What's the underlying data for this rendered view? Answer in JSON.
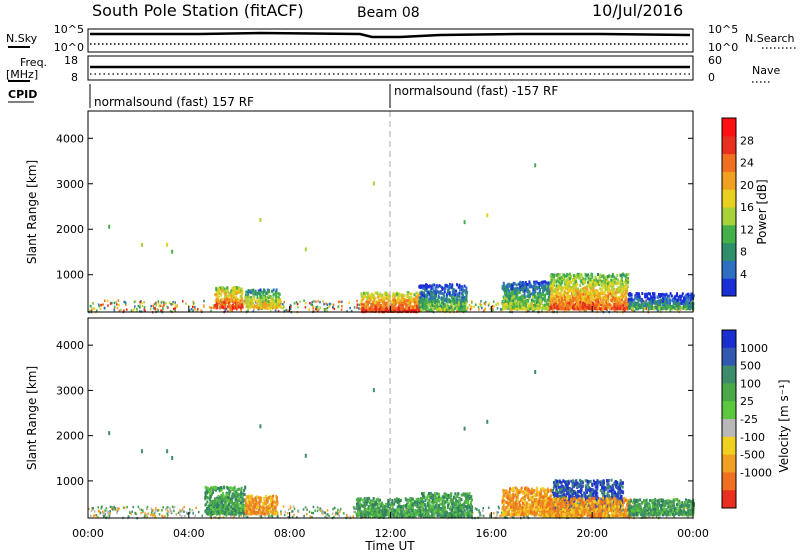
{
  "header": {
    "title": "South Pole Station (fitACF)",
    "beam": "Beam 08",
    "date": "10/Jul/2016"
  },
  "top_panels": {
    "nsky_label": "N.Sky",
    "nsky_ticks": [
      "10^5",
      "10^0"
    ],
    "nsearch_label": "N.Search",
    "nsearch_ticks": [
      "10^5",
      "10^0"
    ],
    "freq_label": "Freq.",
    "freq_unit": "[MHz]",
    "freq_ticks": [
      "18",
      "8"
    ],
    "nave_label": "Nave",
    "nave_ticks": [
      "60",
      "0"
    ],
    "cpid_label": "CPID",
    "cpid_segments": [
      {
        "label": "normalsound (fast) 157 RF",
        "start_hour": 0,
        "end_hour": 12
      },
      {
        "label": "normalsound (fast) -157 RF",
        "start_hour": 12,
        "end_hour": 24
      }
    ]
  },
  "chart_data": [
    {
      "type": "heatmap",
      "name": "power",
      "ylabel": "Slant Range [km]",
      "ylim": [
        180,
        4600
      ],
      "yticks": [
        "1000",
        "2000",
        "3000",
        "4000"
      ],
      "ytick_values": [
        1000,
        2000,
        3000,
        4000
      ],
      "xlim": [
        0,
        24
      ],
      "colorbar": {
        "label": "Power [dB]",
        "ticks": [
          "4",
          "8",
          "12",
          "16",
          "20",
          "24",
          "28"
        ],
        "tick_values": [
          4,
          8,
          12,
          16,
          20,
          24,
          28
        ],
        "range": [
          0,
          32
        ],
        "colors": [
          "#1b2fd9",
          "#2e6fc4",
          "#2f8f6a",
          "#44b04a",
          "#a8d23a",
          "#e8d020",
          "#f0a020",
          "#f07020",
          "#e83020",
          "#ff1010"
        ]
      },
      "bursts": [
        {
          "t0": 5.0,
          "t1": 6.1,
          "r0": 300,
          "r1": 760,
          "level": 27
        },
        {
          "t0": 6.2,
          "t1": 7.6,
          "r0": 300,
          "r1": 700,
          "level": 20
        },
        {
          "t0": 10.8,
          "t1": 13.1,
          "r0": 220,
          "r1": 640,
          "level": 28
        },
        {
          "t0": 13.1,
          "t1": 15.0,
          "r0": 250,
          "r1": 820,
          "level": 14
        },
        {
          "t0": 16.4,
          "t1": 18.3,
          "r0": 280,
          "r1": 880,
          "level": 16
        },
        {
          "t0": 18.3,
          "t1": 21.4,
          "r0": 280,
          "r1": 1050,
          "level": 25
        },
        {
          "t0": 21.4,
          "t1": 24.0,
          "r0": 280,
          "r1": 620,
          "level": 12
        }
      ]
    },
    {
      "type": "heatmap",
      "name": "velocity",
      "ylabel": "Slant Range [km]",
      "ylim": [
        180,
        4600
      ],
      "yticks": [
        "1000",
        "2000",
        "3000",
        "4000"
      ],
      "ytick_values": [
        1000,
        2000,
        3000,
        4000
      ],
      "xlim": [
        0,
        24
      ],
      "xlabel": "Time UT",
      "xticks": [
        "00:00",
        "04:00",
        "08:00",
        "12:00",
        "16:00",
        "20:00",
        "00:00"
      ],
      "xtick_values": [
        0,
        4,
        8,
        12,
        16,
        20,
        24
      ],
      "colorbar": {
        "label": "Velocity [m s⁻¹]",
        "ticks": [
          "1000",
          "500",
          "100",
          "25",
          "-25",
          "-100",
          "-500",
          "-1000"
        ],
        "colors": [
          "#1a2fd0",
          "#3358b0",
          "#3f8c6a",
          "#4aa848",
          "#5cc840",
          "#b8b8b8",
          "#f0d020",
          "#f0a020",
          "#f07020",
          "#e83020"
        ]
      },
      "bursts": [
        {
          "t0": 4.6,
          "t1": 6.2,
          "r0": 300,
          "r1": 900,
          "kind": "green"
        },
        {
          "t0": 6.2,
          "t1": 7.5,
          "r0": 300,
          "r1": 700,
          "kind": "orange"
        },
        {
          "t0": 10.6,
          "t1": 13.2,
          "r0": 250,
          "r1": 650,
          "kind": "green"
        },
        {
          "t0": 13.2,
          "t1": 15.2,
          "r0": 250,
          "r1": 760,
          "kind": "green"
        },
        {
          "t0": 16.4,
          "t1": 18.4,
          "r0": 280,
          "r1": 880,
          "kind": "orange"
        },
        {
          "t0": 18.4,
          "t1": 21.2,
          "r0": 380,
          "r1": 1050,
          "kind": "blue"
        },
        {
          "t0": 18.0,
          "t1": 21.5,
          "r0": 250,
          "r1": 650,
          "kind": "orange"
        },
        {
          "t0": 21.4,
          "t1": 24.0,
          "r0": 280,
          "r1": 620,
          "kind": "green"
        }
      ]
    }
  ]
}
